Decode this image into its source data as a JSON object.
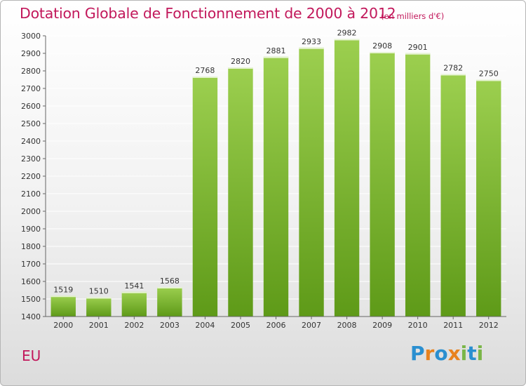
{
  "title": "Dotation Globale de Fonctionnement de 2000 à 2012",
  "subtitle": "(en milliers d'€)",
  "commune": "EU",
  "brand": {
    "letters": [
      "P",
      "r",
      "o",
      "x",
      "i",
      "t",
      "i"
    ],
    "colors": [
      "#2a8fd0",
      "#e8821e",
      "#2a8fd0",
      "#e8821e",
      "#7ab648",
      "#2a8fd0",
      "#7ab648"
    ]
  },
  "colors": {
    "bar_light": "#9ccf4f",
    "bar_dark": "#5e9a18",
    "grid": "#ffffff",
    "axis": "#666666",
    "accent": "#c2185b"
  },
  "chart_data": {
    "type": "bar",
    "categories": [
      "2000",
      "2001",
      "2002",
      "2003",
      "2004",
      "2005",
      "2006",
      "2007",
      "2008",
      "2009",
      "2010",
      "2011",
      "2012"
    ],
    "values": [
      1519,
      1510,
      1541,
      1568,
      2768,
      2820,
      2881,
      2933,
      2982,
      2908,
      2901,
      2782,
      2750
    ],
    "ylim": [
      1400,
      3000
    ],
    "yticks": [
      1400,
      1500,
      1600,
      1700,
      1800,
      1900,
      2000,
      2100,
      2200,
      2300,
      2400,
      2500,
      2600,
      2700,
      2800,
      2900,
      3000
    ],
    "grid": true,
    "data_labels": true
  }
}
